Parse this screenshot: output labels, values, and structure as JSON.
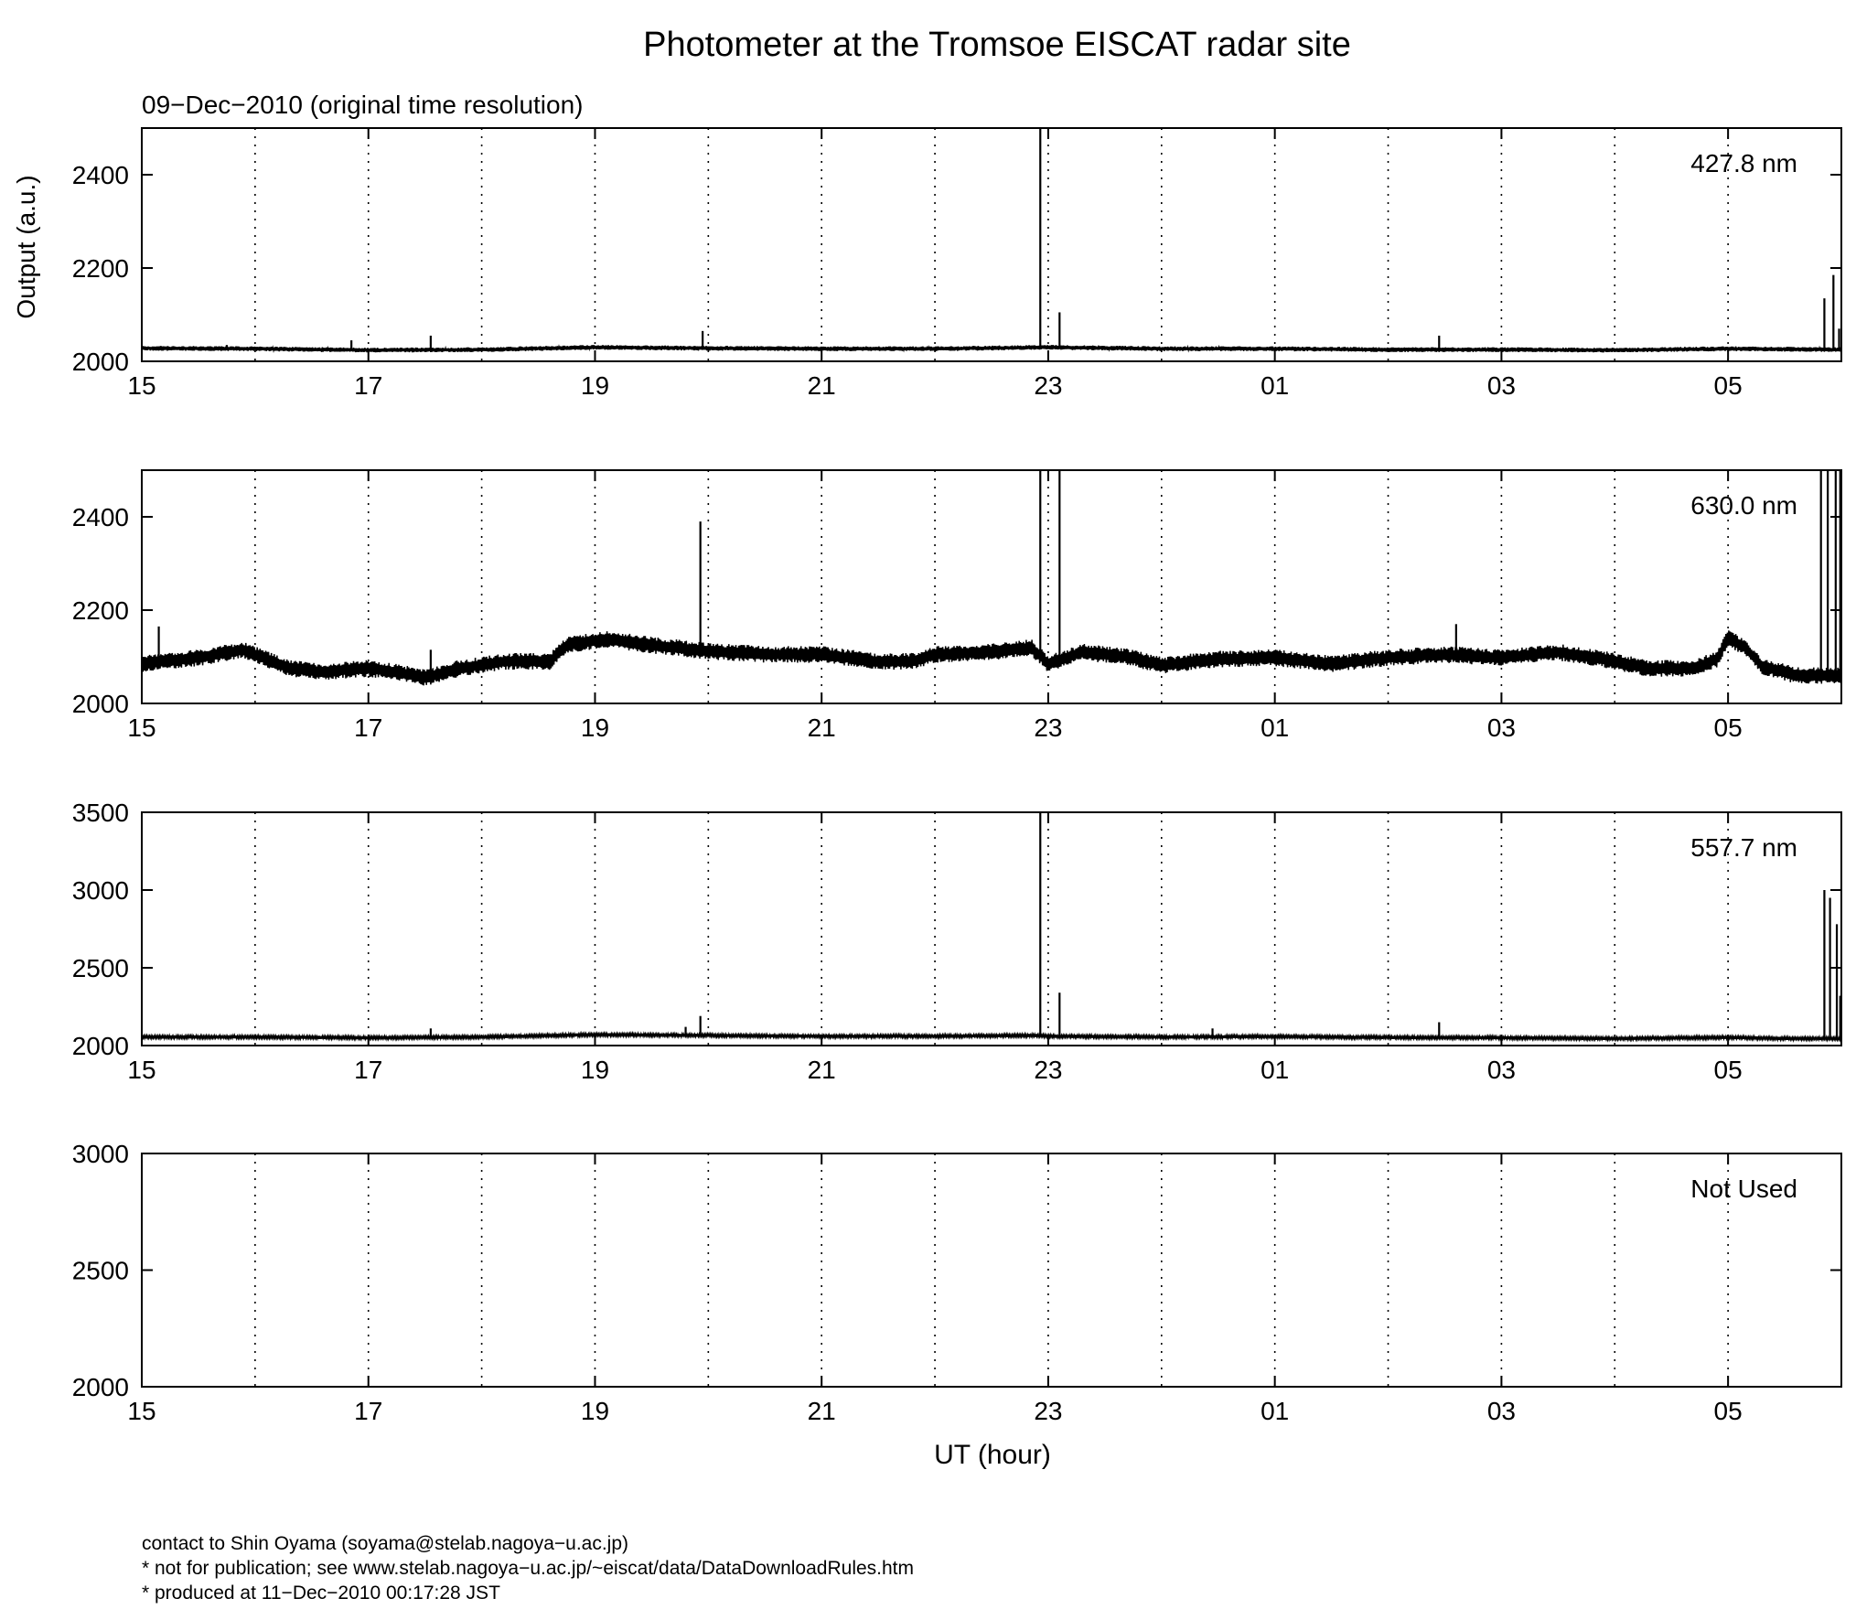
{
  "title": "Photometer at the Tromsoe EISCAT radar site",
  "subtitle": "09−Dec−2010 (original time resolution)",
  "ylabel": "Output (a.u.)",
  "xlabel": "UT (hour)",
  "footer": {
    "contact": "contact to Shin Oyama (soyama@stelab.nagoya−u.ac.jp)",
    "note": "* not for publication; see www.stelab.nagoya−u.ac.jp/~eiscat/data/DataDownloadRules.htm",
    "produced": "* produced at 11−Dec−2010 00:17:28 JST"
  },
  "colors": {
    "line": "#000000",
    "background": "#ffffff",
    "grid": "#000000"
  },
  "chart_data": [
    {
      "type": "line",
      "label": "427.8 nm",
      "xlim": [
        15,
        30
      ],
      "xticks": [
        "15",
        "17",
        "19",
        "21",
        "23",
        "01",
        "03",
        "05"
      ],
      "ylim": [
        2000,
        2500
      ],
      "yticks": [
        2000,
        2200,
        2400
      ],
      "grid": "vertical dotted every hour",
      "series": {
        "base": [
          [
            15.0,
            2028
          ],
          [
            16.0,
            2027
          ],
          [
            17.0,
            2024
          ],
          [
            18.0,
            2025
          ],
          [
            19.0,
            2030
          ],
          [
            20.0,
            2028
          ],
          [
            21.0,
            2027
          ],
          [
            22.0,
            2027
          ],
          [
            23.0,
            2030
          ],
          [
            24.0,
            2027
          ],
          [
            25.0,
            2027
          ],
          [
            26.0,
            2025
          ],
          [
            27.0,
            2025
          ],
          [
            28.0,
            2024
          ],
          [
            29.0,
            2027
          ],
          [
            30.0,
            2025
          ]
        ],
        "band": 5,
        "spikes": [
          [
            15.75,
            2035
          ],
          [
            16.85,
            2045
          ],
          [
            17.55,
            2055
          ],
          [
            19.95,
            2065
          ],
          [
            22.93,
            2500
          ],
          [
            23.1,
            2105
          ],
          [
            26.45,
            2055
          ],
          [
            29.85,
            2135
          ],
          [
            29.93,
            2185
          ],
          [
            29.98,
            2070
          ]
        ]
      }
    },
    {
      "type": "line",
      "label": "630.0 nm",
      "xlim": [
        15,
        30
      ],
      "xticks": [
        "15",
        "17",
        "19",
        "21",
        "23",
        "01",
        "03",
        "05"
      ],
      "ylim": [
        2000,
        2500
      ],
      "yticks": [
        2000,
        2200,
        2400
      ],
      "grid": "vertical dotted every hour",
      "series": {
        "base": [
          [
            15.0,
            2085
          ],
          [
            15.5,
            2098
          ],
          [
            15.9,
            2115
          ],
          [
            16.3,
            2075
          ],
          [
            16.6,
            2068
          ],
          [
            17.0,
            2075
          ],
          [
            17.3,
            2065
          ],
          [
            17.5,
            2055
          ],
          [
            17.8,
            2075
          ],
          [
            18.2,
            2090
          ],
          [
            18.6,
            2090
          ],
          [
            18.75,
            2125
          ],
          [
            19.1,
            2138
          ],
          [
            19.5,
            2125
          ],
          [
            20.0,
            2112
          ],
          [
            20.5,
            2105
          ],
          [
            21.0,
            2105
          ],
          [
            21.5,
            2090
          ],
          [
            21.8,
            2090
          ],
          [
            22.0,
            2105
          ],
          [
            22.5,
            2110
          ],
          [
            22.85,
            2120
          ],
          [
            23.0,
            2085
          ],
          [
            23.3,
            2110
          ],
          [
            23.7,
            2100
          ],
          [
            24.0,
            2082
          ],
          [
            24.5,
            2095
          ],
          [
            25.0,
            2098
          ],
          [
            25.5,
            2085
          ],
          [
            26.0,
            2098
          ],
          [
            26.5,
            2105
          ],
          [
            27.0,
            2098
          ],
          [
            27.5,
            2110
          ],
          [
            27.9,
            2095
          ],
          [
            28.3,
            2075
          ],
          [
            28.7,
            2075
          ],
          [
            28.9,
            2095
          ],
          [
            29.0,
            2140
          ],
          [
            29.15,
            2120
          ],
          [
            29.3,
            2080
          ],
          [
            29.6,
            2060
          ],
          [
            30.0,
            2060
          ]
        ],
        "band": 18,
        "spikes": [
          [
            15.15,
            2165
          ],
          [
            17.55,
            2115
          ],
          [
            19.93,
            2390
          ],
          [
            22.93,
            2500
          ],
          [
            23.1,
            2500
          ],
          [
            26.6,
            2170
          ],
          [
            29.82,
            2500
          ],
          [
            29.88,
            2500
          ],
          [
            29.95,
            2500
          ],
          [
            29.99,
            2500
          ]
        ]
      }
    },
    {
      "type": "line",
      "label": "557.7 nm",
      "xlim": [
        15,
        30
      ],
      "xticks": [
        "15",
        "17",
        "19",
        "21",
        "23",
        "01",
        "03",
        "05"
      ],
      "ylim": [
        2000,
        3500
      ],
      "yticks": [
        2000,
        2500,
        3000,
        3500
      ],
      "grid": "vertical dotted every hour",
      "series": {
        "base": [
          [
            15.0,
            2055
          ],
          [
            16.0,
            2055
          ],
          [
            17.0,
            2050
          ],
          [
            18.0,
            2055
          ],
          [
            19.0,
            2070
          ],
          [
            20.0,
            2065
          ],
          [
            21.0,
            2060
          ],
          [
            22.0,
            2060
          ],
          [
            22.9,
            2065
          ],
          [
            23.0,
            2060
          ],
          [
            24.0,
            2055
          ],
          [
            25.0,
            2058
          ],
          [
            26.0,
            2052
          ],
          [
            27.0,
            2050
          ],
          [
            28.0,
            2045
          ],
          [
            29.0,
            2052
          ],
          [
            29.5,
            2045
          ],
          [
            30.0,
            2045
          ]
        ],
        "band": 10,
        "spikes": [
          [
            17.55,
            2110
          ],
          [
            19.8,
            2120
          ],
          [
            19.93,
            2190
          ],
          [
            22.93,
            3500
          ],
          [
            23.1,
            2340
          ],
          [
            24.45,
            2110
          ],
          [
            26.45,
            2150
          ],
          [
            29.85,
            3000
          ],
          [
            29.9,
            2950
          ],
          [
            29.96,
            2780
          ],
          [
            29.99,
            2320
          ]
        ]
      }
    },
    {
      "type": "line",
      "label": "Not Used",
      "xlim": [
        15,
        30
      ],
      "xticks": [
        "15",
        "17",
        "19",
        "21",
        "23",
        "01",
        "03",
        "05"
      ],
      "ylim": [
        2000,
        3000
      ],
      "yticks": [
        2000,
        2500,
        3000
      ],
      "grid": "vertical dotted every hour",
      "series": null
    }
  ]
}
